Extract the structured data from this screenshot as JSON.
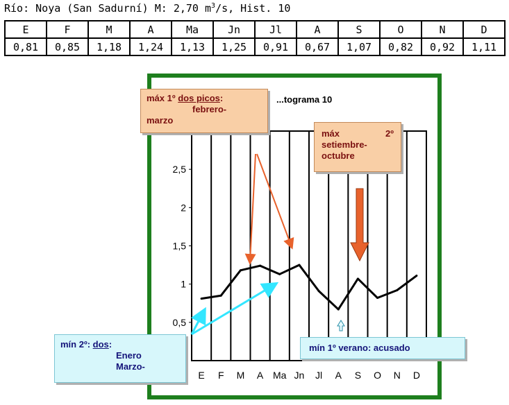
{
  "header": {
    "river_label": "Río:",
    "river_name": "Noya (San Sadurní) M: 2,70 m",
    "superscript": "3",
    "suffix": "/s, Hist. 10"
  },
  "table": {
    "months": [
      "E",
      "F",
      "M",
      "A",
      "Ma",
      "Jn",
      "Jl",
      "A",
      "S",
      "O",
      "N",
      "D"
    ],
    "values": [
      "0,81",
      "0,85",
      "1,18",
      "1,24",
      "1,13",
      "1,25",
      "0,91",
      "0,67",
      "1,07",
      "0,82",
      "0,92",
      "1,11"
    ]
  },
  "chart_data": {
    "type": "line",
    "title": "...tograma 10",
    "categories": [
      "E",
      "F",
      "M",
      "A",
      "Ma",
      "Jn",
      "Jl",
      "A",
      "S",
      "O",
      "N",
      "D"
    ],
    "series": [
      {
        "values": [
          0.81,
          0.85,
          1.18,
          1.24,
          1.13,
          1.25,
          0.91,
          0.67,
          1.07,
          0.82,
          0.92,
          1.11
        ]
      }
    ],
    "ylim": [
      0,
      3
    ],
    "yticks": [
      "0,5",
      "1",
      "1,5",
      "2",
      "2,5"
    ],
    "ytick_values": [
      0.5,
      1,
      1.5,
      2,
      2.5
    ],
    "grid": true,
    "line_color": "#000000"
  },
  "colors": {
    "frame": "#1e7f1e",
    "orange_box": "#f9cfa6",
    "orange_arrow": "#e8622c",
    "blue_box": "#d7f7fb",
    "cyan_arrow": "#33e6ff"
  },
  "callouts": {
    "max1": {
      "prefix": "máx 1º ",
      "underlined": "dos picos",
      "suffix": ":",
      "line2": "febrero-",
      "line3": "marzo"
    },
    "max2": {
      "line1a": "máx",
      "line1b": "2º",
      "line2": "setiembre-",
      "line3": "octubre"
    },
    "min2": {
      "prefix": "mín 2º: ",
      "underlined": "dos",
      "suffix": ":",
      "line2": "Enero",
      "line3": "Marzo-"
    },
    "min1": {
      "text": "mín 1º verano: acusado"
    }
  }
}
